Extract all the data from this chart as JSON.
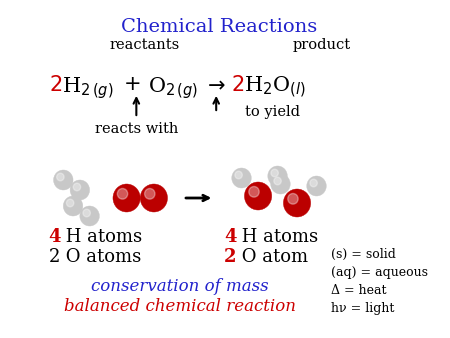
{
  "title": "Chemical Reactions",
  "title_color": "#2222CC",
  "title_fontsize": 14,
  "bg_color": "#FFFFFF",
  "reactants_label": "reactants",
  "product_label": "product",
  "reacts_with_text": "reacts with",
  "to_yield_text": "to yield",
  "conservation_text": "conservation of mass",
  "conservation_color": "#2222CC",
  "balanced_text": "balanced chemical reaction",
  "balanced_color": "#CC0000",
  "atom_number_color_red": "#CC0000",
  "side_notes": [
    "(s) = solid",
    "(aq) = aqueous",
    "Δ = heat",
    "hν = light"
  ]
}
